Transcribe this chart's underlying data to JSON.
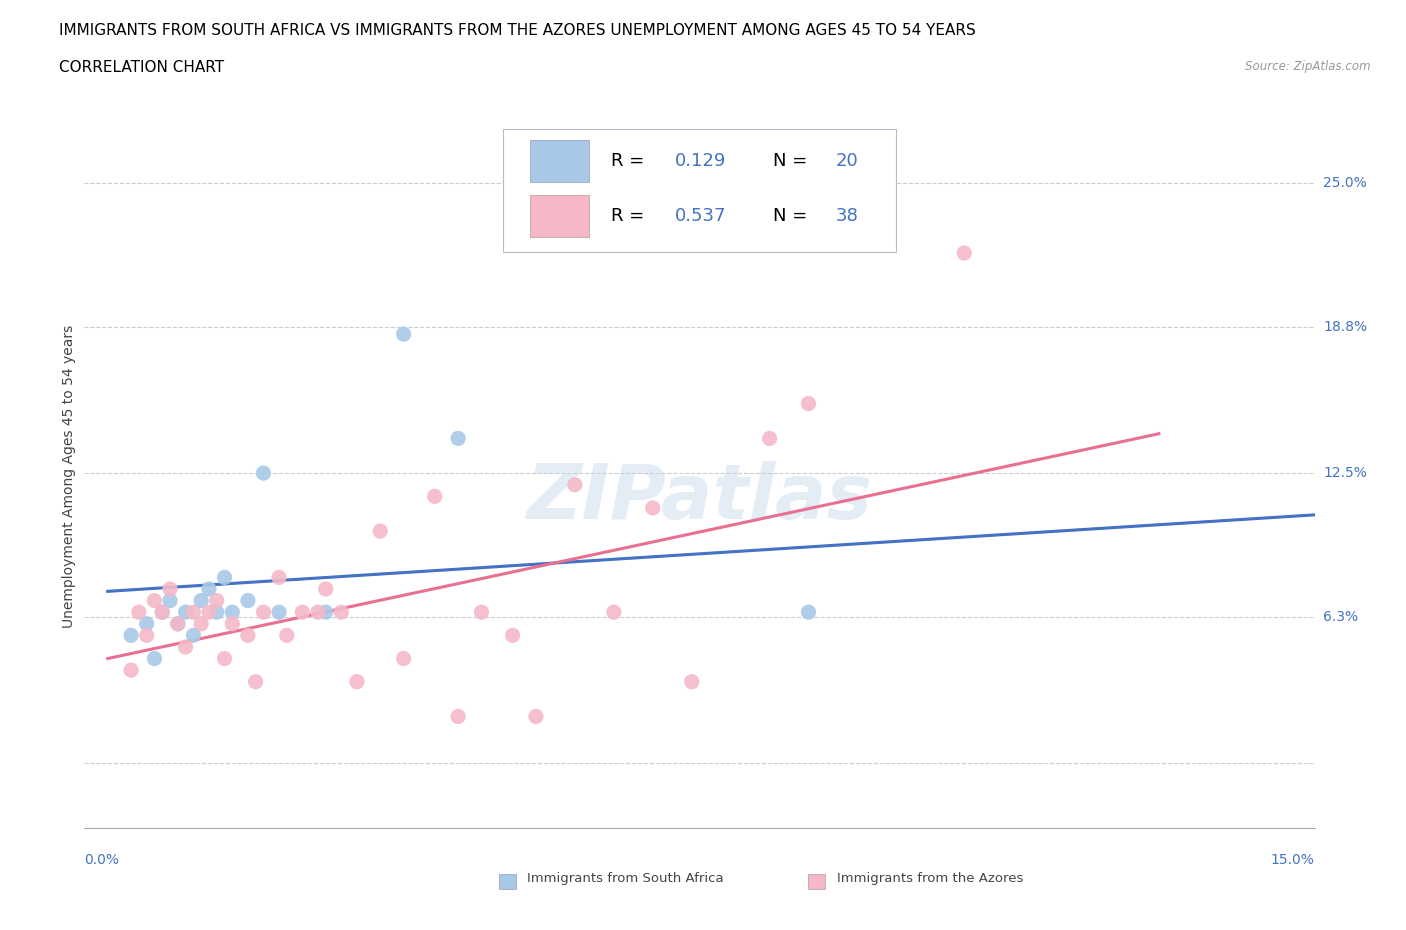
{
  "title_line1": "IMMIGRANTS FROM SOUTH AFRICA VS IMMIGRANTS FROM THE AZORES UNEMPLOYMENT AMONG AGES 45 TO 54 YEARS",
  "title_line2": "CORRELATION CHART",
  "source": "Source: ZipAtlas.com",
  "ylabel": "Unemployment Among Ages 45 to 54 years",
  "yticks": [
    0.0,
    0.063,
    0.125,
    0.188,
    0.25
  ],
  "ytick_labels": [
    "",
    "6.3%",
    "12.5%",
    "18.8%",
    "25.0%"
  ],
  "xmin": -0.003,
  "xmax": 0.155,
  "ymin": -0.028,
  "ymax": 0.275,
  "watermark": "ZIPatlas",
  "color_blue": "#a8c8e8",
  "color_pink": "#f4b8c8",
  "color_blue_dark": "#4472c4",
  "color_pink_dark": "#e87090",
  "blue_scatter_x": [
    0.003,
    0.005,
    0.006,
    0.007,
    0.008,
    0.009,
    0.01,
    0.011,
    0.012,
    0.013,
    0.014,
    0.015,
    0.016,
    0.018,
    0.02,
    0.022,
    0.028,
    0.038,
    0.045,
    0.09
  ],
  "blue_scatter_y": [
    0.055,
    0.06,
    0.045,
    0.065,
    0.07,
    0.06,
    0.065,
    0.055,
    0.07,
    0.075,
    0.065,
    0.08,
    0.065,
    0.07,
    0.125,
    0.065,
    0.065,
    0.185,
    0.14,
    0.065
  ],
  "pink_scatter_x": [
    0.003,
    0.004,
    0.005,
    0.006,
    0.007,
    0.008,
    0.009,
    0.01,
    0.011,
    0.012,
    0.013,
    0.014,
    0.015,
    0.016,
    0.018,
    0.019,
    0.02,
    0.022,
    0.023,
    0.025,
    0.027,
    0.028,
    0.03,
    0.032,
    0.035,
    0.038,
    0.042,
    0.045,
    0.048,
    0.052,
    0.055,
    0.06,
    0.065,
    0.07,
    0.075,
    0.085,
    0.09,
    0.11
  ],
  "pink_scatter_y": [
    0.04,
    0.065,
    0.055,
    0.07,
    0.065,
    0.075,
    0.06,
    0.05,
    0.065,
    0.06,
    0.065,
    0.07,
    0.045,
    0.06,
    0.055,
    0.035,
    0.065,
    0.08,
    0.055,
    0.065,
    0.065,
    0.075,
    0.065,
    0.035,
    0.1,
    0.045,
    0.115,
    0.02,
    0.065,
    0.055,
    0.02,
    0.12,
    0.065,
    0.11,
    0.035,
    0.14,
    0.155,
    0.22
  ],
  "blue_line_x": [
    0.0,
    0.155
  ],
  "blue_line_y": [
    0.074,
    0.107
  ],
  "pink_line_x": [
    0.0,
    0.135
  ],
  "pink_line_y": [
    0.045,
    0.142
  ],
  "grid_color": "#cccccc",
  "bg_color": "#ffffff",
  "title_color": "#000000",
  "axis_label_color": "#4472c4",
  "legend_text_color": "#000000",
  "legend_num_color": "#4472c4"
}
